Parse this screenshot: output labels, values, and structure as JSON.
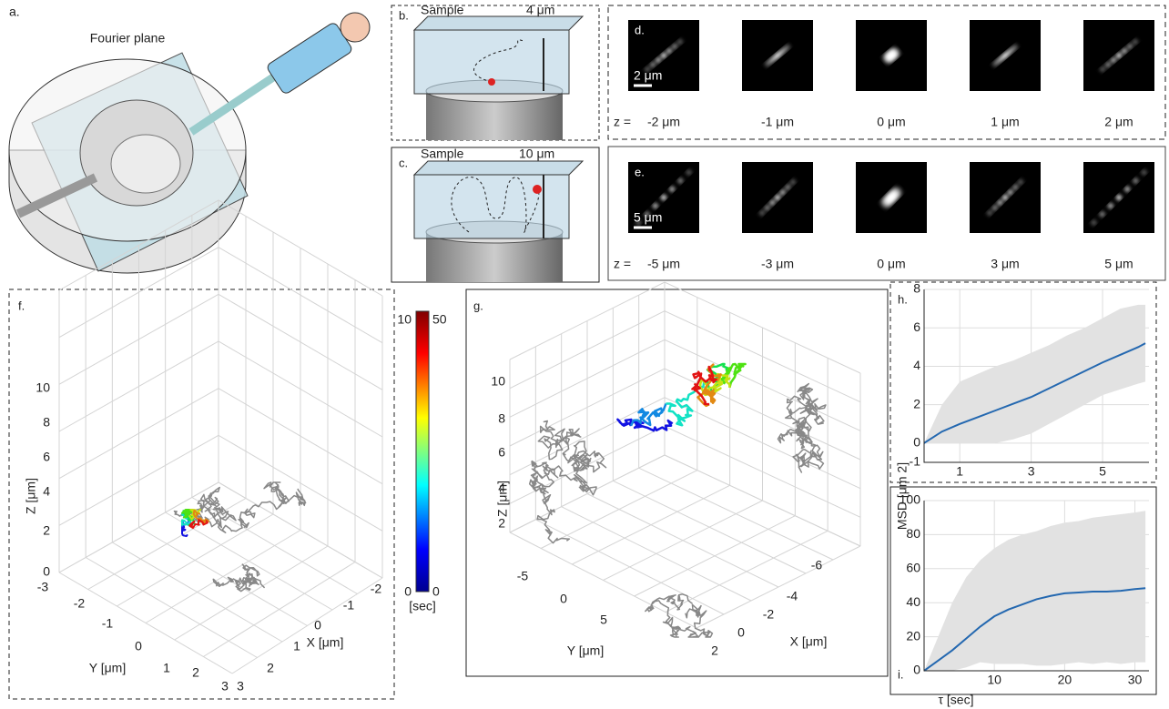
{
  "panel_a": {
    "label": "a.",
    "title": "Fourier plane"
  },
  "panel_b": {
    "label": "b.",
    "sample": "Sample",
    "range": "4 μm"
  },
  "panel_c": {
    "label": "c.",
    "sample": "Sample",
    "range": "10 μm"
  },
  "panel_d": {
    "label": "d.",
    "scale_bar": "2 μm",
    "z_prefix": "z =",
    "z_labels": [
      "-2 μm",
      "-1 μm",
      "0 μm",
      "1 μm",
      "2 μm"
    ]
  },
  "panel_e": {
    "label": "e.",
    "scale_bar": "5 μm",
    "z_prefix": "z =",
    "z_labels": [
      "-5 μm",
      "-3 μm",
      "0 μm",
      "3 μm",
      "5 μm"
    ]
  },
  "panel_f": {
    "label": "f.",
    "z_axis": "Z [μm]",
    "y_axis": "Y [μm]",
    "x_axis": "X [μm]",
    "z_ticks": [
      0,
      2,
      4,
      6,
      8,
      10
    ],
    "y_ticks": [
      -3,
      -2,
      -1,
      0,
      1,
      2,
      3
    ],
    "x_ticks": [
      3,
      2,
      1,
      0,
      -1,
      -2
    ]
  },
  "colorbar": {
    "left_top": 10,
    "right_top": 50,
    "left_bottom": 0,
    "right_bottom": 0,
    "unit": "[sec]"
  },
  "panel_g": {
    "label": "g.",
    "z_axis": "Z [μm]",
    "y_axis": "Y [μm]",
    "x_axis": "X [μm]",
    "z_ticks": [
      2,
      4,
      6,
      8,
      10
    ],
    "y_ticks": [
      -5,
      0,
      5
    ],
    "x_ticks": [
      2,
      0,
      -2,
      -4,
      -6
    ]
  },
  "chart_data": [
    {
      "type": "line",
      "label": "h.",
      "x": [
        0,
        0.5,
        1,
        1.5,
        2,
        2.5,
        3,
        3.5,
        4,
        4.5,
        5,
        5.5,
        6,
        6.2
      ],
      "values": [
        0,
        0.6,
        1.0,
        1.35,
        1.7,
        2.05,
        2.4,
        2.85,
        3.3,
        3.75,
        4.2,
        4.6,
        5.0,
        5.2
      ],
      "upper": [
        0,
        2.0,
        3.2,
        3.6,
        4.0,
        4.3,
        4.7,
        5.1,
        5.6,
        6.0,
        6.5,
        7.0,
        7.2,
        7.2
      ],
      "lower": [
        0,
        0,
        0,
        0,
        0,
        0.2,
        0.5,
        1.0,
        1.5,
        2.0,
        2.5,
        2.8,
        3.1,
        3.2
      ],
      "color": "#2468b0",
      "band_color": "#e2e2e2",
      "xlim": [
        0,
        6.3
      ],
      "ylim": [
        -1,
        8
      ],
      "xticks": [
        1,
        3,
        5
      ],
      "yticks": [
        -1,
        0,
        2,
        4,
        6,
        8
      ],
      "grid": true
    },
    {
      "type": "line",
      "label": "i.",
      "ylabel": "MSD [μm 2]",
      "xlabel": "τ [sec]",
      "x": [
        0,
        2,
        4,
        6,
        8,
        10,
        12,
        14,
        16,
        18,
        20,
        22,
        24,
        26,
        28,
        30,
        31.5
      ],
      "values": [
        0,
        6,
        12,
        19,
        26,
        32,
        36,
        39,
        42,
        44,
        45.5,
        46,
        46.5,
        46.5,
        47,
        48,
        48.5
      ],
      "upper": [
        0,
        20,
        40,
        55,
        65,
        72,
        77,
        80,
        82,
        85,
        87,
        88,
        90,
        91,
        92,
        93,
        94
      ],
      "lower": [
        0,
        0,
        0,
        2,
        5,
        4,
        4,
        4,
        3,
        3,
        4,
        5,
        4,
        5,
        4,
        5,
        5
      ],
      "color": "#2468b0",
      "band_color": "#e2e2e2",
      "xlim": [
        0,
        32
      ],
      "ylim": [
        0,
        100
      ],
      "xticks": [
        10,
        20,
        30
      ],
      "yticks": [
        0,
        20,
        40,
        60,
        80,
        100
      ],
      "grid": true
    }
  ]
}
